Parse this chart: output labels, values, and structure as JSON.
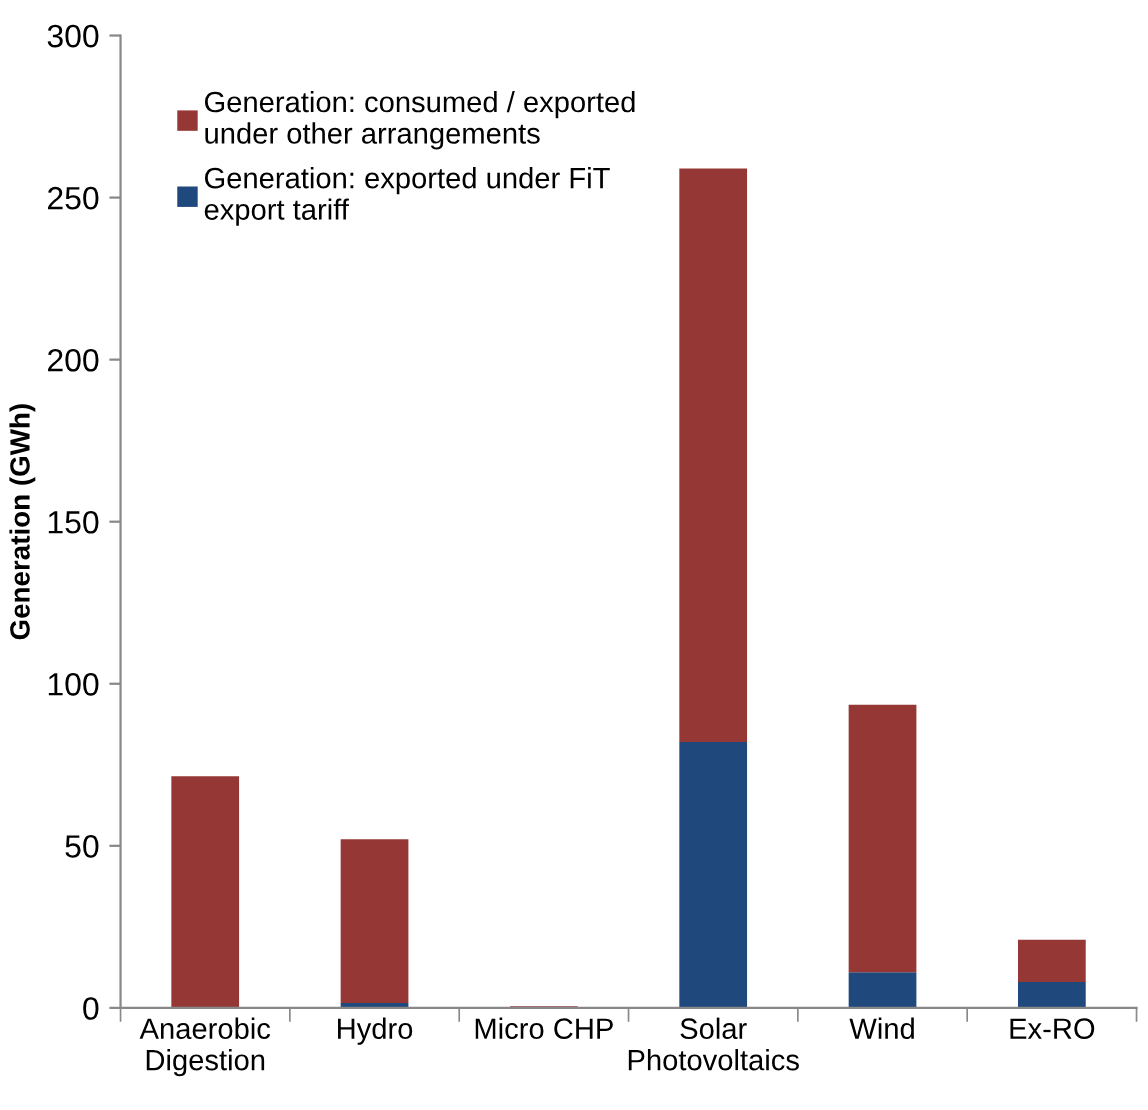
{
  "chart_data": {
    "type": "bar",
    "stacked": true,
    "ylabel": "Generation (GWh)",
    "categories": [
      "Anaerobic\nDigestion",
      "Hydro",
      "Micro CHP",
      "Solar\nPhotovoltaics",
      "Wind",
      "Ex-RO"
    ],
    "series": [
      {
        "name": "Generation: exported under FiT\nexport tariff",
        "color": "#1f497d",
        "values": [
          0,
          1.5,
          0,
          82,
          11,
          8
        ]
      },
      {
        "name": "Generation: consumed / exported\nunder other arrangements",
        "color": "#953735",
        "values": [
          71.5,
          50.5,
          0.5,
          177,
          82.5,
          13
        ]
      }
    ],
    "ylim": [
      0,
      300
    ],
    "yticks": [
      0,
      50,
      100,
      150,
      200,
      250,
      300
    ],
    "grid": false,
    "legend": "top left"
  }
}
